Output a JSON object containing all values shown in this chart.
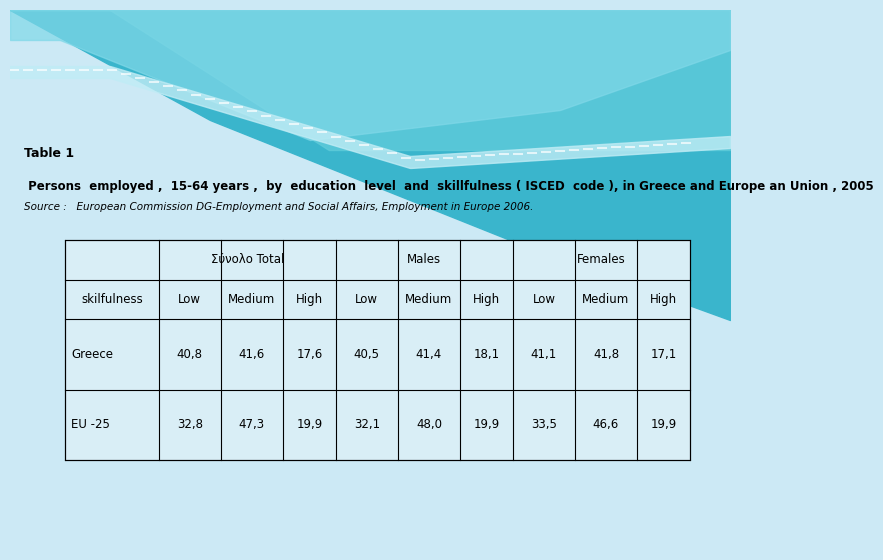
{
  "title": "Table 1",
  "subtitle": " Persons  employed ,  15-64 years ,  by  education  level  and  skillfulness ( ISCED  code ), in Greece and Europe an Union , 2005",
  "source": "Source :   European Commission DG-Employment and Social Affairs, Employment in Europe 2006.",
  "bg_color": "#cce9f5",
  "table_bg": "#d9eef6",
  "header2": [
    "skilfulness",
    "Low",
    "Medium",
    "High",
    "Low",
    "Medium",
    "High",
    "Low",
    "Medium",
    "High"
  ],
  "rows": [
    [
      "Greece",
      "40,8",
      "41,6",
      "17,6",
      "40,5",
      "41,4",
      "18,1",
      "41,1",
      "41,8",
      "17,1"
    ],
    [
      "EU -25",
      "32,8",
      "47,3",
      "19,9",
      "32,1",
      "48,0",
      "19,9",
      "33,5",
      "46,6",
      "19,9"
    ]
  ],
  "col_spans": [
    {
      "label": "Σύνολο Total",
      "start": 1,
      "end": 3
    },
    {
      "label": "Males",
      "start": 4,
      "end": 6
    },
    {
      "label": "Females",
      "start": 7,
      "end": 9
    }
  ],
  "title_fontsize": 9,
  "subtitle_fontsize": 8.5,
  "source_fontsize": 7.5,
  "table_fontsize": 8.5,
  "wave1_color": "#4bbfd4",
  "wave2_color": "#6dcfe0",
  "wave3_color": "#99dde8",
  "wave4_color": "#b5e8f0"
}
